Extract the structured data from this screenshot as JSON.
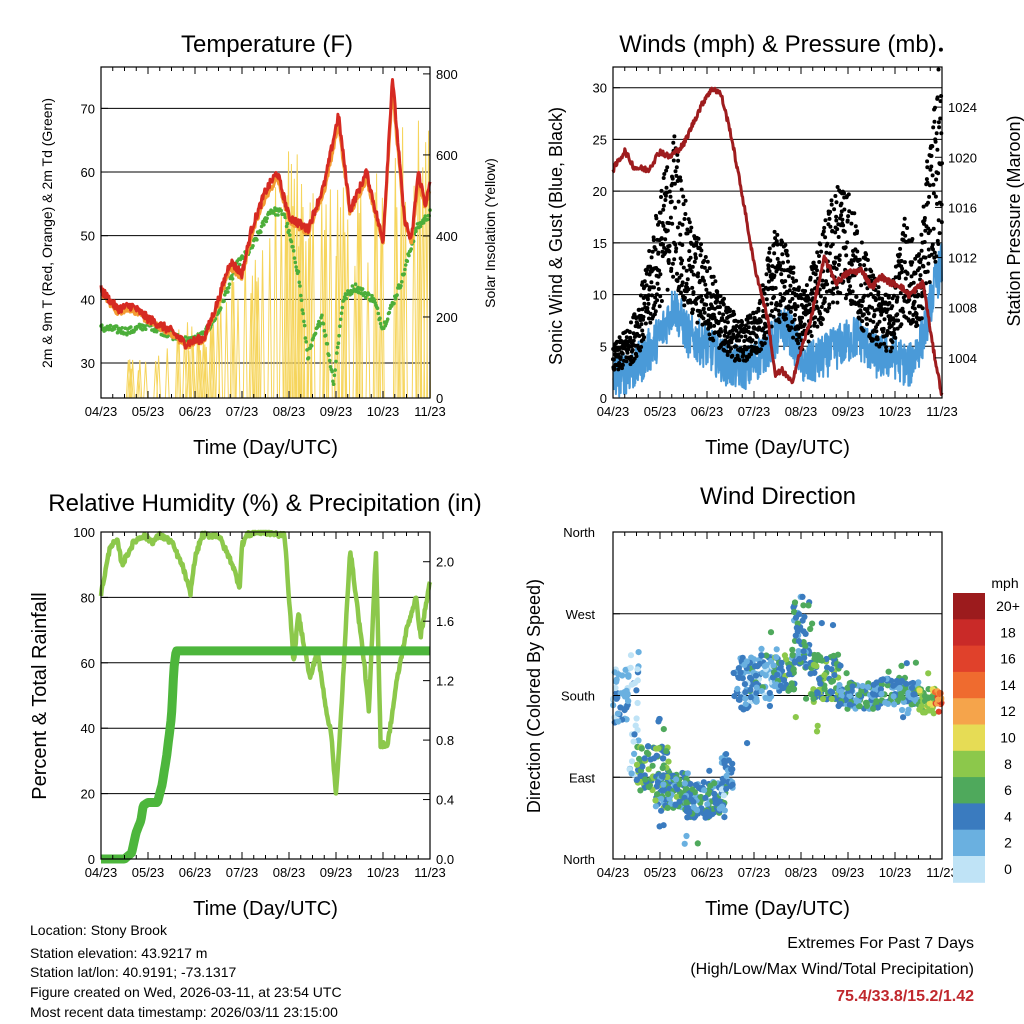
{
  "colors": {
    "air_temp_2m": "#d62a22",
    "air_temp_9m": "#f39c33",
    "dewpoint": "#4cae3a",
    "solar": "#f6d55c",
    "wind": "#4a9ad8",
    "gust": "#000000",
    "pressure": "#9e1c1e",
    "humidity": "#8cc84b",
    "precip": "#4db63c",
    "extremes_text": "#c0282d"
  },
  "time_axis": {
    "tick_labels": [
      "04/23",
      "05/23",
      "06/23",
      "07/23",
      "08/23",
      "09/23",
      "10/23",
      "11/23"
    ],
    "label": "Time (Day/UTC)"
  },
  "chart_data": [
    {
      "id": "temperature",
      "type": "line",
      "title": "Temperature (F)",
      "xlabel": "Time (Day/UTC)",
      "ylabel": "2m & 9m T (Red, Orange) & 2m Td (Green)",
      "y2label": "Solar Insolation (Yellow)",
      "xlim": [
        0,
        7
      ],
      "ylim": [
        24.5,
        76.5
      ],
      "y2lim": [
        0,
        817
      ],
      "y_ticks": [
        30,
        40,
        50,
        60,
        70
      ],
      "y2_ticks": [
        0,
        200,
        400,
        600,
        800
      ],
      "grid": true,
      "series": [
        {
          "name": "2m T",
          "axis": "left",
          "x": [
            0,
            0.35,
            0.65,
            1.0,
            1.5,
            1.8,
            2.2,
            2.5,
            2.75,
            3.0,
            3.2,
            3.5,
            3.75,
            4.0,
            4.4,
            4.75,
            5.05,
            5.3,
            5.65,
            6.0,
            6.2,
            6.45,
            6.6,
            6.75,
            6.9,
            7.0
          ],
          "y": [
            41.5,
            38.5,
            39.0,
            37.0,
            35.0,
            33.0,
            34.0,
            40.0,
            46.0,
            44.0,
            51.0,
            57.0,
            60.0,
            53.0,
            51.0,
            58.0,
            69.0,
            54.0,
            60.0,
            49.0,
            75.0,
            53.0,
            49.0,
            60.0,
            55.0,
            58.0
          ]
        },
        {
          "name": "9m T",
          "axis": "left",
          "x": [
            0,
            0.35,
            0.65,
            1.0,
            1.5,
            1.8,
            2.2,
            2.5,
            2.75,
            3.0,
            3.2,
            3.5,
            3.75,
            4.0,
            4.4,
            4.75,
            5.05,
            5.3,
            5.65,
            6.0,
            6.2,
            6.45,
            6.6,
            6.75,
            6.9,
            7.0
          ],
          "y": [
            41.0,
            38.0,
            38.5,
            36.6,
            34.6,
            32.7,
            33.6,
            39.4,
            45.0,
            43.5,
            50.0,
            56.0,
            59.0,
            52.4,
            50.5,
            57.0,
            67.5,
            53.4,
            59.0,
            48.6,
            73.0,
            52.6,
            48.5,
            58.5,
            54.6,
            57.0
          ]
        },
        {
          "name": "2m Td",
          "axis": "left",
          "x": [
            0,
            0.6,
            1.0,
            1.6,
            1.9,
            2.2,
            2.5,
            2.9,
            3.2,
            3.6,
            3.9,
            4.2,
            4.4,
            4.7,
            4.95,
            5.15,
            5.4,
            5.8,
            6.0,
            6.4,
            6.7,
            7.0
          ],
          "y": [
            35.5,
            35.0,
            36.0,
            34.0,
            33.5,
            34.5,
            38.0,
            45.5,
            48.0,
            54.0,
            53.5,
            44.0,
            31.0,
            37.5,
            27.0,
            40.0,
            42.0,
            40.0,
            35.5,
            43.0,
            51.0,
            53.5
          ]
        },
        {
          "name": "Solar Insolation",
          "axis": "right",
          "x": [
            0.6,
            1.0,
            1.65,
            2.3,
            2.65,
            3.05,
            3.55,
            3.95,
            4.45,
            4.85,
            5.25,
            5.6,
            6.0,
            6.3,
            6.65,
            6.9
          ],
          "y": [
            110,
            90,
            200,
            180,
            320,
            400,
            420,
            700,
            530,
            610,
            500,
            520,
            650,
            760,
            640,
            800
          ]
        }
      ]
    },
    {
      "id": "winds",
      "type": "line",
      "title": "Winds (mph) & Pressure (mb)",
      "xlabel": "Time (Day/UTC)",
      "ylabel": "Sonic Wind & Gust (Blue, Black)",
      "y2label": "Station Pressure (Maroon)",
      "xlim": [
        0,
        7
      ],
      "ylim": [
        0,
        32
      ],
      "y2lim": [
        1000.8,
        1027.2
      ],
      "y_ticks": [
        0,
        5,
        10,
        15,
        20,
        25,
        30
      ],
      "y2_ticks": [
        1004,
        1008,
        1012,
        1016,
        1020,
        1024
      ],
      "grid": true,
      "series": [
        {
          "name": "Sonic Wind",
          "axis": "left",
          "x": [
            0,
            0.5,
            1.0,
            1.3,
            1.6,
            2.0,
            2.5,
            2.9,
            3.3,
            3.7,
            4.1,
            4.5,
            4.8,
            5.2,
            5.6,
            6.0,
            6.3,
            6.6,
            6.85,
            7.0
          ],
          "y": [
            2,
            3,
            6,
            9,
            6,
            5,
            3,
            3,
            5,
            7,
            3,
            4,
            5,
            6,
            4,
            4,
            3,
            6,
            11,
            13
          ]
        },
        {
          "name": "Gust",
          "axis": "left",
          "x": [
            0,
            0.4,
            0.7,
            1.0,
            1.3,
            1.6,
            1.9,
            2.3,
            2.7,
            3.1,
            3.4,
            3.7,
            4.0,
            4.3,
            4.6,
            4.9,
            5.3,
            5.6,
            5.9,
            6.2,
            6.5,
            6.7,
            6.9,
            7.0
          ],
          "y": [
            4,
            6,
            10,
            16,
            21,
            14,
            12,
            8,
            6,
            7,
            13,
            12,
            8,
            11,
            15,
            18,
            12,
            9,
            8,
            14,
            11,
            19,
            25,
            28
          ]
        },
        {
          "name": "Station Pressure",
          "axis": "right",
          "x": [
            0,
            0.25,
            0.45,
            0.75,
            1.0,
            1.2,
            1.5,
            1.8,
            2.0,
            2.15,
            2.3,
            2.5,
            2.75,
            3.0,
            3.3,
            3.45,
            3.6,
            3.8,
            3.95,
            4.2,
            4.5,
            4.75,
            5.0,
            5.3,
            5.5,
            5.7,
            5.9,
            6.1,
            6.3,
            6.6,
            6.8,
            7.0
          ],
          "y": [
            1019,
            1020.5,
            1019.2,
            1019.0,
            1020.5,
            1020.0,
            1021.0,
            1023.5,
            1025.0,
            1025.5,
            1025.0,
            1022.0,
            1017.0,
            1011.5,
            1007.0,
            1002.6,
            1003.0,
            1002.0,
            1004.0,
            1007.0,
            1012.0,
            1010.0,
            1010.8,
            1011.0,
            1009.6,
            1010.5,
            1010.0,
            1009.8,
            1009.0,
            1010.0,
            1005.0,
            1001.0
          ]
        }
      ]
    },
    {
      "id": "humidity",
      "type": "line",
      "title": "Relative Humidity (%) & Precipitation (in)",
      "xlabel": "Time (Day/UTC)",
      "ylabel": "Percent & Total Rainfall",
      "xlim": [
        0,
        7
      ],
      "ylim": [
        0,
        100
      ],
      "y2lim": [
        0,
        2.2
      ],
      "y_ticks": [
        0,
        20,
        40,
        60,
        80,
        100
      ],
      "y2_ticks": [
        0.0,
        0.4,
        0.8,
        1.2,
        1.6,
        2.0
      ],
      "grid": true,
      "series": [
        {
          "name": "Relative Humidity",
          "axis": "left",
          "x": [
            0,
            0.2,
            0.35,
            0.45,
            0.7,
            0.9,
            1.1,
            1.25,
            1.5,
            1.75,
            1.9,
            2.0,
            2.15,
            2.5,
            2.8,
            2.95,
            3.0,
            3.1,
            3.3,
            3.5,
            3.8,
            3.9,
            4.1,
            4.2,
            4.45,
            4.6,
            4.8,
            4.9,
            5.0,
            5.05,
            5.15,
            5.3,
            5.6,
            5.7,
            5.85,
            5.95,
            6.1,
            6.3,
            6.5,
            6.7,
            6.8,
            7.0
          ],
          "y": [
            81,
            96,
            97,
            90,
            97,
            99,
            97,
            99,
            97,
            89,
            81,
            92,
            99,
            99,
            90,
            83,
            96,
            99,
            100,
            100,
            99,
            100,
            60,
            75,
            55,
            64,
            45,
            38,
            20,
            30,
            55,
            95,
            60,
            45,
            95,
            35,
            35,
            55,
            70,
            80,
            68,
            85
          ]
        },
        {
          "name": "Total Precipitation",
          "axis": "right",
          "x": [
            0,
            0.5,
            0.65,
            0.75,
            0.85,
            0.9,
            1.0,
            1.2,
            1.3,
            1.4,
            1.5,
            1.55,
            1.6,
            2.0,
            3.0,
            4.0,
            5.0,
            6.0,
            7.0
          ],
          "y": [
            0.0,
            0.0,
            0.04,
            0.18,
            0.26,
            0.36,
            0.38,
            0.38,
            0.5,
            0.7,
            0.96,
            1.28,
            1.4,
            1.4,
            1.4,
            1.4,
            1.4,
            1.4,
            1.4
          ]
        }
      ]
    },
    {
      "id": "wind_direction",
      "type": "scatter",
      "title": "Wind Direction",
      "xlabel": "Time (Day/UTC)",
      "ylabel": "Direction (Colored By Speed)",
      "xlim": [
        0,
        7
      ],
      "ylim": [
        0,
        360
      ],
      "y_tick_labels": [
        "North",
        "East",
        "South",
        "West",
        "North"
      ],
      "grid": true,
      "clusters": [
        {
          "x0": 0.0,
          "x1": 0.35,
          "dir": 180,
          "spread": 30,
          "speed": 2
        },
        {
          "x0": 0.35,
          "x1": 0.55,
          "dir": 160,
          "spread": 70,
          "speed": 1
        },
        {
          "x0": 0.5,
          "x1": 1.2,
          "dir": 100,
          "spread": 25,
          "speed": 6
        },
        {
          "x0": 0.9,
          "x1": 1.6,
          "dir": 75,
          "spread": 20,
          "speed": 5
        },
        {
          "x0": 1.5,
          "x1": 2.4,
          "dir": 65,
          "spread": 20,
          "speed": 4
        },
        {
          "x0": 2.3,
          "x1": 2.55,
          "dir": 95,
          "spread": 25,
          "speed": 3
        },
        {
          "x0": 2.55,
          "x1": 3.4,
          "dir": 195,
          "spread": 30,
          "speed": 3
        },
        {
          "x0": 3.4,
          "x1": 3.9,
          "dir": 205,
          "spread": 20,
          "speed": 5
        },
        {
          "x0": 3.8,
          "x1": 4.2,
          "dir": 250,
          "spread": 40,
          "speed": 4
        },
        {
          "x0": 4.2,
          "x1": 4.8,
          "dir": 200,
          "spread": 25,
          "speed": 6
        },
        {
          "x0": 4.8,
          "x1": 5.7,
          "dir": 180,
          "spread": 15,
          "speed": 4
        },
        {
          "x0": 5.7,
          "x1": 6.5,
          "dir": 185,
          "spread": 15,
          "speed": 4
        },
        {
          "x0": 6.5,
          "x1": 6.85,
          "dir": 175,
          "spread": 15,
          "speed": 8
        },
        {
          "x0": 6.85,
          "x1": 7.0,
          "dir": 178,
          "spread": 8,
          "speed": 14
        }
      ]
    }
  ],
  "legend": {
    "unit": "mph",
    "levels": [
      "20+",
      "18",
      "16",
      "14",
      "12",
      "10",
      "8",
      "6",
      "4",
      "2",
      "0"
    ],
    "colors": [
      "#9c1b1d",
      "#c92a28",
      "#e0412b",
      "#ef6b2f",
      "#f5a44b",
      "#e6dc55",
      "#8cc84b",
      "#4fa95c",
      "#3a7bbf",
      "#6ab0e0",
      "#bfe3f6"
    ]
  },
  "info": {
    "location": "Location: Stony Brook",
    "elevation": "Station elevation: 43.9217 m",
    "latlon": "Station lat/lon: 40.9191; -73.1317",
    "created": "Figure created on Wed, 2026-03-11, at 23:54 UTC",
    "recent": "Most recent data timestamp: 2026/03/11 23:15:00"
  },
  "extremes": {
    "title": "Extremes For Past 7 Days",
    "subtitle": "(High/Low/Max Wind/Total Precipitation)",
    "values": "75.4/33.8/15.2/1.42"
  }
}
